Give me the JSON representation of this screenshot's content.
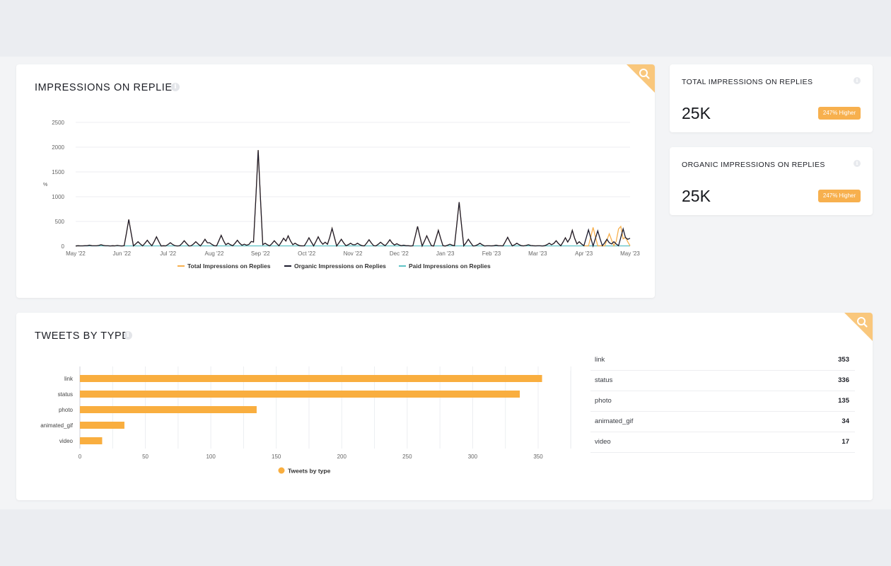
{
  "impressions_card": {
    "title": "IMPRESSIONS ON REPLIES",
    "y_unit": "%"
  },
  "stats": [
    {
      "title": "TOTAL IMPRESSIONS ON REPLIES",
      "value": "25K",
      "badge": "247% Higher"
    },
    {
      "title": "ORGANIC IMPRESSIONS ON REPLIES",
      "value": "25K",
      "badge": "247% Higher"
    }
  ],
  "tweets_card": {
    "title": "TWEETS BY TYPE"
  },
  "table": {
    "rows": [
      {
        "label": "link",
        "value": "353"
      },
      {
        "label": "status",
        "value": "336"
      },
      {
        "label": "photo",
        "value": "135"
      },
      {
        "label": "animated_gif",
        "value": "34"
      },
      {
        "label": "video",
        "value": "17"
      }
    ]
  },
  "colors": {
    "accent": "#f7b04e",
    "organic": "#1c1b2e",
    "paid": "#5fc3c6",
    "bar": "#f9ae3f"
  },
  "icons": [
    "info-icon",
    "search-icon"
  ],
  "chart_data": [
    {
      "type": "line",
      "xlabel": "",
      "ylabel": "%",
      "ylim": [
        0,
        2500
      ],
      "yticks": [
        "0",
        "500",
        "1000",
        "1500",
        "2000",
        "2500"
      ],
      "xticks": [
        "May '22",
        "Jun '22",
        "Jul '22",
        "Aug '22",
        "Sep '22",
        "Oct '22",
        "Nov '22",
        "Dec '22",
        "Jan '23",
        "Feb '23",
        "Mar '23",
        "Apr '23",
        "May '23"
      ],
      "legend": "bottom",
      "series": [
        {
          "name": "Total Impressions on Replies",
          "peaks": [
            [
              11.2,
              380
            ],
            [
              11.55,
              250
            ],
            [
              11.78,
              500
            ],
            [
              11.9,
              180
            ]
          ]
        },
        {
          "name": "Organic Impressions on Replies",
          "peaks": [
            [
              0.3,
              20
            ],
            [
              0.55,
              30
            ],
            [
              0.9,
              15
            ],
            [
              1.15,
              540
            ],
            [
              1.35,
              90
            ],
            [
              1.55,
              120
            ],
            [
              1.75,
              190
            ],
            [
              2.05,
              70
            ],
            [
              2.35,
              110
            ],
            [
              2.6,
              90
            ],
            [
              2.8,
              140
            ],
            [
              2.9,
              70
            ],
            [
              3.15,
              220
            ],
            [
              3.3,
              60
            ],
            [
              3.5,
              120
            ],
            [
              3.65,
              40
            ],
            [
              3.82,
              120
            ],
            [
              3.95,
              1940
            ],
            [
              4.1,
              60
            ],
            [
              4.3,
              110
            ],
            [
              4.5,
              160
            ],
            [
              4.6,
              210
            ],
            [
              4.75,
              60
            ],
            [
              5.05,
              170
            ],
            [
              5.25,
              190
            ],
            [
              5.4,
              80
            ],
            [
              5.55,
              360
            ],
            [
              5.75,
              140
            ],
            [
              5.95,
              60
            ],
            [
              6.1,
              60
            ],
            [
              6.35,
              130
            ],
            [
              6.6,
              80
            ],
            [
              6.8,
              130
            ],
            [
              6.95,
              50
            ],
            [
              7.1,
              20
            ],
            [
              7.4,
              400
            ],
            [
              7.6,
              210
            ],
            [
              7.85,
              320
            ],
            [
              8.1,
              40
            ],
            [
              8.3,
              890
            ],
            [
              8.5,
              140
            ],
            [
              8.75,
              60
            ],
            [
              9.1,
              20
            ],
            [
              9.35,
              180
            ],
            [
              9.55,
              60
            ],
            [
              9.8,
              30
            ],
            [
              10.25,
              60
            ],
            [
              10.4,
              110
            ],
            [
              10.6,
              170
            ],
            [
              10.75,
              320
            ],
            [
              10.9,
              90
            ],
            [
              11.1,
              330
            ],
            [
              11.3,
              310
            ],
            [
              11.5,
              140
            ],
            [
              11.65,
              90
            ],
            [
              11.85,
              350
            ],
            [
              11.98,
              200
            ],
            [
              12.15,
              920
            ],
            [
              12.3,
              140
            ],
            [
              12.55,
              220
            ],
            [
              12.75,
              110
            ],
            [
              12.95,
              180
            ],
            [
              13.1,
              50
            ],
            [
              13.3,
              140
            ],
            [
              13.55,
              130
            ],
            [
              13.7,
              60
            ],
            [
              13.95,
              390
            ],
            [
              14.15,
              100
            ],
            [
              14.35,
              220
            ],
            [
              14.5,
              180
            ],
            [
              14.7,
              70
            ],
            [
              14.9,
              390
            ],
            [
              15.1,
              450
            ],
            [
              15.3,
              200
            ],
            [
              15.5,
              600
            ],
            [
              15.75,
              120
            ],
            [
              15.95,
              260
            ],
            [
              16.15,
              180
            ],
            [
              16.35,
              140
            ],
            [
              16.55,
              70
            ],
            [
              16.8,
              190
            ],
            [
              17.05,
              450
            ],
            [
              17.2,
              80
            ],
            [
              17.45,
              150
            ],
            [
              17.6,
              80
            ],
            [
              17.85,
              190
            ],
            [
              18.05,
              90
            ],
            [
              18.4,
              140
            ],
            [
              18.55,
              40
            ]
          ]
        },
        {
          "name": "Paid Impressions on Replies",
          "peaks": []
        }
      ]
    },
    {
      "type": "bar",
      "orientation": "horizontal",
      "categories": [
        "link",
        "status",
        "photo",
        "animated_gif",
        "video"
      ],
      "series": [
        {
          "name": "Tweets by type",
          "values": [
            353,
            336,
            135,
            34,
            17
          ]
        }
      ],
      "xlim": [
        0,
        350
      ],
      "xticks": [
        "0",
        "50",
        "100",
        "150",
        "200",
        "250",
        "300",
        "350"
      ],
      "legend": "bottom"
    }
  ]
}
